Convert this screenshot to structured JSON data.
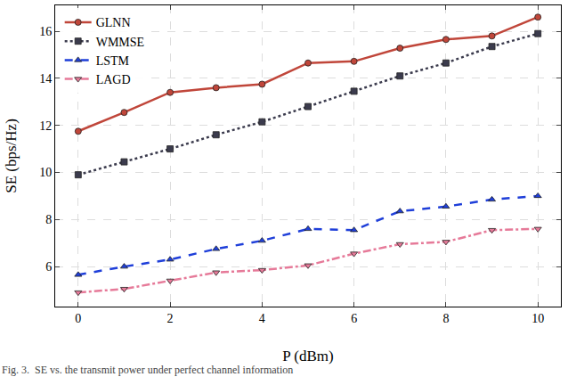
{
  "chart_data": {
    "type": "line",
    "x_label": "P (dBm)",
    "y_label": "SE (bps/Hz)",
    "x": [
      0,
      1,
      2,
      3,
      4,
      5,
      6,
      7,
      8,
      9,
      10
    ],
    "series": [
      {
        "name": "GLNN",
        "color": "#c0463a",
        "marker": "circle",
        "line_style": "solid",
        "values": [
          11.75,
          12.55,
          13.4,
          13.6,
          13.75,
          14.65,
          14.72,
          15.28,
          15.65,
          15.8,
          16.6
        ]
      },
      {
        "name": "WMMSE",
        "color": "#3b3b4d",
        "marker": "square",
        "line_style": "dot",
        "values": [
          9.9,
          10.45,
          11.0,
          11.6,
          12.15,
          12.8,
          13.45,
          14.1,
          14.65,
          15.35,
          15.9
        ]
      },
      {
        "name": "LSTM",
        "color": "#1f3fd9",
        "marker": "triangle-up",
        "line_style": "dash",
        "values": [
          5.65,
          6.0,
          6.3,
          6.75,
          7.1,
          7.6,
          7.55,
          8.35,
          8.55,
          8.85,
          9.0
        ]
      },
      {
        "name": "LAGD",
        "color": "#e67a99",
        "marker": "triangle-down",
        "line_style": "dashdot",
        "values": [
          4.9,
          5.05,
          5.4,
          5.75,
          5.85,
          6.05,
          6.55,
          6.95,
          7.05,
          7.55,
          7.6
        ]
      }
    ],
    "xlim": [
      -0.5,
      10.5
    ],
    "xticks": [
      0,
      2,
      4,
      6,
      8,
      10
    ],
    "ylim": [
      4.3,
      17.1
    ],
    "yticks": [
      6,
      8,
      10,
      12,
      14,
      16
    ],
    "grid": true,
    "legend": "top-left",
    "annotations": [
      "Fig. 3.  SE vs. the transmit power under perfect channel information"
    ]
  }
}
